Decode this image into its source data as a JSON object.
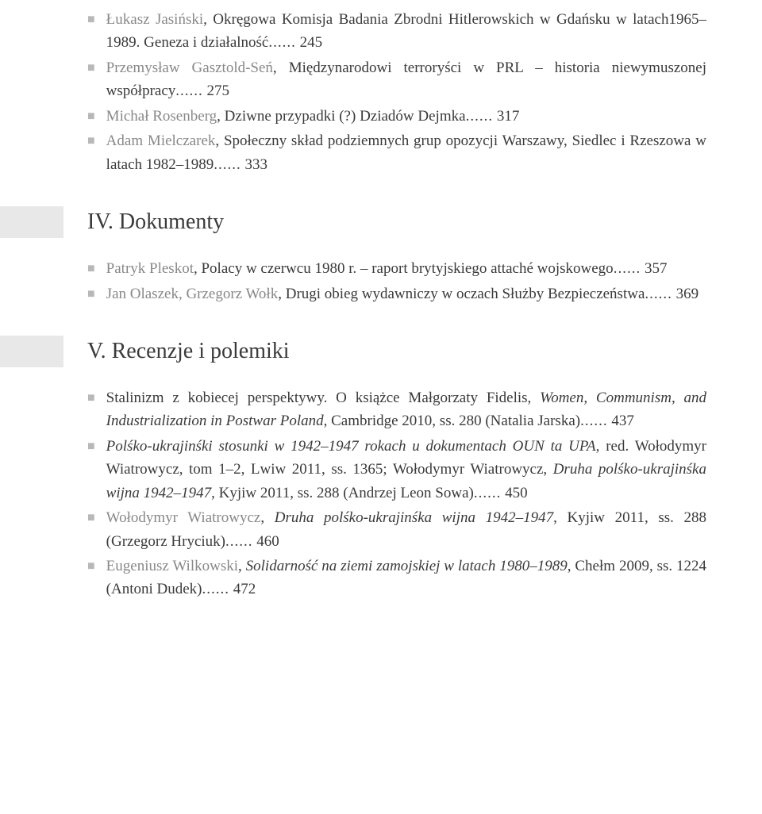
{
  "entries_top": [
    {
      "author": "Łukasz Jasiński",
      "title": ", Okręgowa Komisja Badania Zbrodni Hitlerowskich w Gdańsku w latach1965–1989. Geneza i działalność",
      "page": "245"
    },
    {
      "author": "Przemysław Gasztold-Seń",
      "title": ", Międzynarodowi terroryści w PRL – historia niewymuszonej współpracy",
      "page": "275"
    },
    {
      "author": "Michał Rosenberg",
      "title": ", Dziwne przypadki (?) Dziadów Dejmka",
      "page": "317"
    },
    {
      "author": "Adam Mielczarek",
      "title": ", Społeczny skład podziemnych grup opozycji Warszawy, Siedlec i Rzeszowa w latach 1982–1989",
      "page": "333"
    }
  ],
  "section_dokumenty": "IV. Dokumenty",
  "entries_dokumenty": [
    {
      "author": "Patryk Pleskot",
      "title": ", Polacy w czerwcu 1980 r. – raport brytyjskiego attaché wojskowego",
      "page": "357"
    },
    {
      "author": "Jan Olaszek, Grzegorz Wołk",
      "title": ", Drugi obieg wydawniczy w oczach Służby Bezpieczeństwa",
      "page": "369"
    }
  ],
  "section_recenzje": "V. Recenzje i polemiki",
  "entries_recenzje": [
    {
      "prefix": "",
      "text_parts": [
        {
          "t": "Stalinizm z kobiecej perspektywy. O książce Małgorzaty Fidelis, ",
          "italic": false
        },
        {
          "t": "Women, Communism, and Industrialization in Postwar Poland",
          "italic": true
        },
        {
          "t": ", Cambridge 2010, ss. 280 (Natalia Jarska)",
          "italic": false
        }
      ],
      "page": "437"
    },
    {
      "text_parts": [
        {
          "t": "Polśko-ukrajinśki stosunki w 1942–1947 rokach u dokumentach OUN ta UPA",
          "italic": true
        },
        {
          "t": ", red. Wołodymyr Wiatrowycz, tom 1–2, Lwiw 2011, ss. 1365; Wołodymyr Wiatrowycz, ",
          "italic": false
        },
        {
          "t": "Druha polśko-ukrajinśka wijna 1942–1947",
          "italic": true
        },
        {
          "t": ", Kyjiw 2011, ss. 288 (Andrzej Leon Sowa)",
          "italic": false
        }
      ],
      "page": "450"
    },
    {
      "text_parts": [
        {
          "t": "Wołodymyr Wiatrowycz",
          "italic": false,
          "author": true
        },
        {
          "t": ", ",
          "italic": false
        },
        {
          "t": "Druha polśko-ukrajinśka wijna 1942–1947",
          "italic": true
        },
        {
          "t": ", Kyjiw 2011, ss. 288 (Grzegorz Hryciuk)",
          "italic": false
        }
      ],
      "page": "460"
    },
    {
      "text_parts": [
        {
          "t": "Eugeniusz Wilkowski",
          "italic": false,
          "author": true
        },
        {
          "t": ", ",
          "italic": false
        },
        {
          "t": "Solidarność na ziemi zamojskiej w latach 1980–1989",
          "italic": true
        },
        {
          "t": ", Chełm 2009, ss. 1224 (Antoni Dudek)",
          "italic": false
        }
      ],
      "page": "472"
    }
  ]
}
